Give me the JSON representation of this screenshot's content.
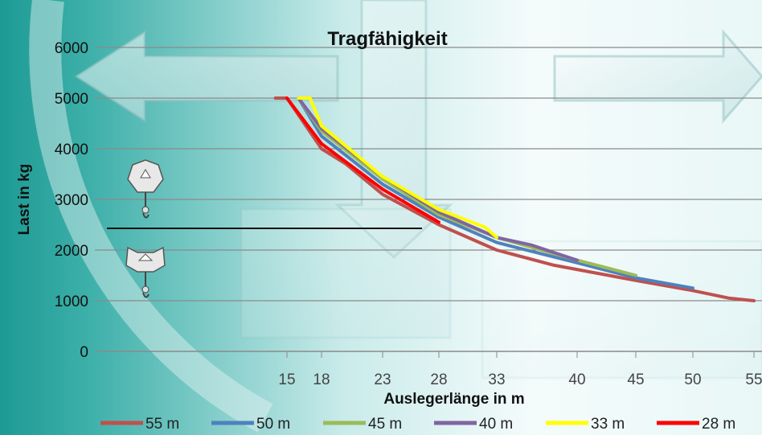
{
  "chart_data": {
    "type": "line",
    "title": "Tragfähigkeit",
    "xlabel": "Auslegerlänge in m",
    "ylabel": "Last in kg",
    "ylim": [
      0,
      6000
    ],
    "yticks": [
      "0",
      "1000",
      "2000",
      "3000",
      "4000",
      "5000",
      "6000"
    ],
    "xticks": [
      "15",
      "18",
      "23",
      "28",
      "33",
      "40",
      "45",
      "50",
      "55"
    ],
    "grid": "horizontal",
    "legend_position": "bottom",
    "series": [
      {
        "name": "55 m",
        "color": "#c0504d",
        "points": [
          [
            14,
            5000
          ],
          [
            15,
            5000
          ],
          [
            18,
            4000
          ],
          [
            20,
            3700
          ],
          [
            23,
            3100
          ],
          [
            28,
            2500
          ],
          [
            33,
            2000
          ],
          [
            38,
            1700
          ],
          [
            45,
            1400
          ],
          [
            50,
            1200
          ],
          [
            53,
            1050
          ],
          [
            55,
            1000
          ]
        ]
      },
      {
        "name": "50 m",
        "color": "#4f81bd",
        "points": [
          [
            16,
            5000
          ],
          [
            18,
            4250
          ],
          [
            23,
            3300
          ],
          [
            28,
            2650
          ],
          [
            33,
            2150
          ],
          [
            40,
            1750
          ],
          [
            45,
            1450
          ],
          [
            50,
            1250
          ]
        ]
      },
      {
        "name": "45 m",
        "color": "#9bbb59",
        "points": [
          [
            16,
            5000
          ],
          [
            18,
            4350
          ],
          [
            23,
            3400
          ],
          [
            28,
            2700
          ],
          [
            33,
            2250
          ],
          [
            40,
            1800
          ],
          [
            45,
            1500
          ]
        ]
      },
      {
        "name": "40 m",
        "color": "#8064a2",
        "points": [
          [
            16,
            5000
          ],
          [
            18,
            4400
          ],
          [
            23,
            3450
          ],
          [
            28,
            2750
          ],
          [
            33,
            2250
          ],
          [
            36,
            2100
          ],
          [
            40,
            1800
          ]
        ]
      },
      {
        "name": "33 m",
        "color": "#ffff00",
        "points": [
          [
            16,
            5000
          ],
          [
            17,
            5000
          ],
          [
            18,
            4450
          ],
          [
            23,
            3450
          ],
          [
            28,
            2800
          ],
          [
            32,
            2450
          ],
          [
            33,
            2250
          ]
        ]
      },
      {
        "name": "28 m",
        "color": "#ff0000",
        "points": [
          [
            15,
            5000
          ],
          [
            18,
            4100
          ],
          [
            23,
            3200
          ],
          [
            28,
            2550
          ]
        ]
      }
    ]
  },
  "colors": {
    "gridline": "#8a8a8a",
    "divider": "#111111"
  },
  "decorations": {
    "hook_icons": [
      "single-hook-icon",
      "double-hook-icon"
    ]
  }
}
